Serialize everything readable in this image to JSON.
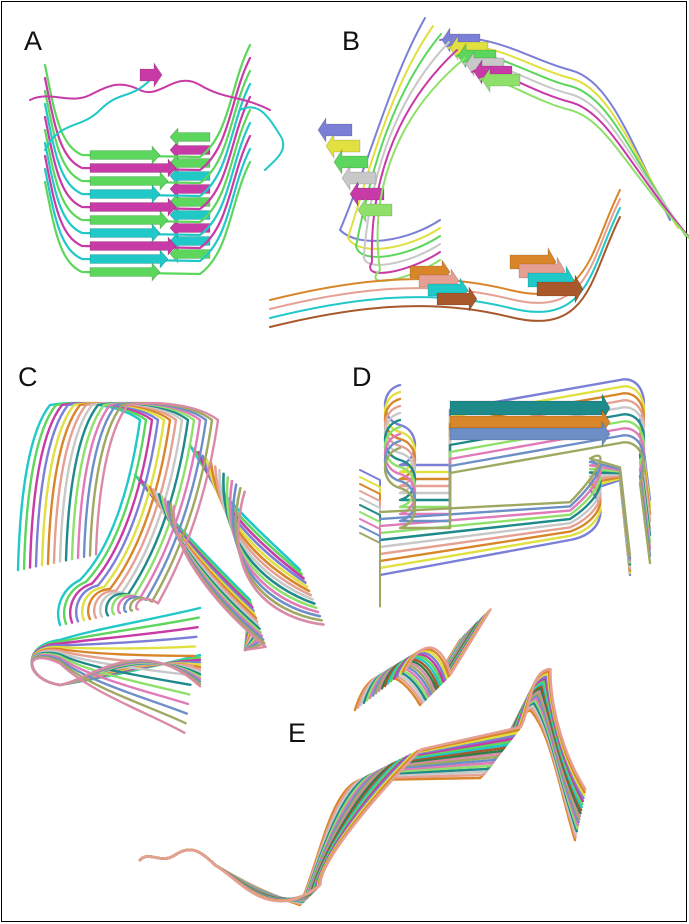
{
  "panels": [
    {
      "id": "A",
      "label": "A"
    },
    {
      "id": "B",
      "label": "B"
    },
    {
      "id": "C",
      "label": "C"
    },
    {
      "id": "D",
      "label": "D"
    },
    {
      "id": "E",
      "label": "E"
    }
  ],
  "palette": {
    "magenta": "#c83aa6",
    "cyan": "#21c8c8",
    "green": "#5cd65c",
    "lime": "#8fe06a",
    "blue": "#7b7fd6",
    "yellow": "#e0e040",
    "orange": "#d9862a",
    "salmon": "#e6a093",
    "grey": "#c8c8c8",
    "teal": "#1f8a8a",
    "brown": "#a8582a",
    "pink": "#e07ab8",
    "dark-green": "#2f7f4a",
    "slate": "#6d8fc7",
    "olive": "#9fa860",
    "rose": "#d98aa6"
  }
}
